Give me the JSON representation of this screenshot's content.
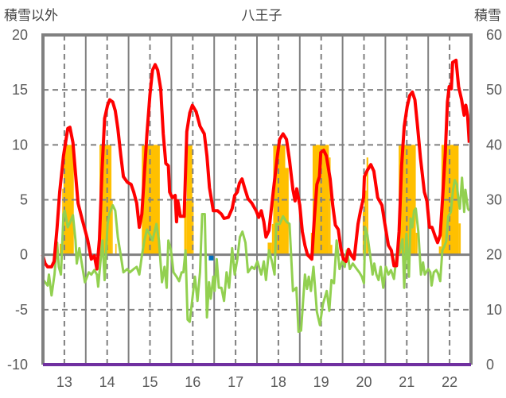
{
  "chart_data": {
    "type": "line",
    "title": "八王子",
    "ylabel_left": "積雪以外",
    "ylabel_right": "積雪",
    "xlim": [
      12.5,
      22.5
    ],
    "ylim_left": [
      -10,
      20
    ],
    "ylim_right": [
      0,
      60
    ],
    "x_ticks": [
      13,
      14,
      15,
      16,
      17,
      18,
      19,
      20,
      21,
      22
    ],
    "x_tick_labels": [
      "13",
      "14",
      "15",
      "16",
      "17",
      "18",
      "19",
      "20",
      "21",
      "22"
    ],
    "y_left_ticks": [
      20,
      15,
      10,
      5,
      0,
      -5,
      -10
    ],
    "y_left_tick_labels": [
      "20",
      "15",
      "10",
      "5",
      "0",
      "-5",
      "-10"
    ],
    "y_right_ticks": [
      60,
      50,
      40,
      30,
      20,
      10,
      0
    ],
    "y_right_tick_labels": [
      "60",
      "50",
      "40",
      "30",
      "20",
      "10",
      "0"
    ],
    "grid": true,
    "colors": {
      "red": "#FF0000",
      "green": "#92D050",
      "snow": "#FFC000",
      "purple": "#7030A0",
      "blue": "#0070C0",
      "grid": "#808080"
    },
    "series": [
      {
        "name": "red",
        "axis": "left",
        "x": [
          12.49,
          12.55,
          12.61,
          12.7,
          12.76,
          12.83,
          12.89,
          12.98,
          13.08,
          13.13,
          13.2,
          13.26,
          13.32,
          13.41,
          13.54,
          13.63,
          13.7,
          13.76,
          13.82,
          13.88,
          13.94,
          14.01,
          14.06,
          14.13,
          14.19,
          14.25,
          14.32,
          14.38,
          14.47,
          14.56,
          14.62,
          14.69,
          14.75,
          14.81,
          14.87,
          14.93,
          15.0,
          15.06,
          15.12,
          15.18,
          15.25,
          15.31,
          15.37,
          15.43,
          15.46,
          15.52,
          15.59,
          15.62,
          15.65,
          15.71,
          15.8,
          15.86,
          15.93,
          15.99,
          16.08,
          16.17,
          16.27,
          16.33,
          16.39,
          16.48,
          16.58,
          16.67,
          16.73,
          16.83,
          16.92,
          16.98,
          17.04,
          17.09,
          17.15,
          17.21,
          17.29,
          17.38,
          17.48,
          17.54,
          17.6,
          17.66,
          17.71,
          17.78,
          17.88,
          17.97,
          18.03,
          18.11,
          18.19,
          18.26,
          18.34,
          18.39,
          18.43,
          18.5,
          18.56,
          18.62,
          18.68,
          18.78,
          18.84,
          18.9,
          18.96,
          18.99,
          19.06,
          19.12,
          19.21,
          19.27,
          19.33,
          19.4,
          19.46,
          19.52,
          19.58,
          19.64,
          19.71,
          19.77,
          19.86,
          19.92,
          19.99,
          20.01,
          20.08,
          20.16,
          20.23,
          20.32,
          20.42,
          20.48,
          20.57,
          20.64,
          20.7,
          20.76,
          20.82,
          20.88,
          20.94,
          21.01,
          21.07,
          21.13,
          21.19,
          21.25,
          21.32,
          21.41,
          21.47,
          21.53,
          21.59,
          21.66,
          21.72,
          21.78,
          21.84,
          21.9,
          21.95,
          21.99,
          22.04,
          22.07,
          22.15,
          22.21,
          22.28,
          22.34,
          22.38,
          22.42,
          22.46
        ],
        "y": [
          0,
          -0.8,
          -1.1,
          -1.1,
          -0.6,
          2.5,
          5.7,
          9.0,
          11.5,
          11.6,
          10.2,
          7.4,
          4.7,
          3.3,
          1.4,
          -0.4,
          -0.1,
          -1.3,
          1.4,
          7.6,
          12.4,
          13.6,
          14.1,
          13.9,
          13.1,
          11.5,
          9.0,
          7.1,
          6.6,
          6.4,
          5.7,
          4.7,
          2.5,
          3.7,
          7.4,
          11.0,
          14.6,
          16.8,
          17.3,
          16.8,
          15.1,
          11.0,
          8.3,
          8.1,
          5.7,
          5.2,
          5.4,
          3.0,
          4.9,
          3.5,
          3.5,
          11.2,
          12.9,
          13.6,
          13.0,
          11.7,
          11.0,
          9.0,
          6.1,
          4.0,
          4.0,
          3.7,
          3.3,
          3.4,
          4.2,
          5.4,
          5.7,
          6.5,
          6.9,
          6.1,
          5.1,
          4.7,
          4.0,
          3.4,
          4.0,
          3.0,
          1.6,
          2.2,
          5.7,
          8.8,
          10.5,
          11.0,
          10.5,
          8.6,
          5.9,
          4.9,
          6.0,
          4.5,
          2.1,
          0.85,
          0,
          -0.4,
          3.3,
          6.4,
          7.1,
          9.3,
          9.5,
          9.0,
          6.9,
          4.5,
          2.7,
          2.3,
          0.6,
          -0.4,
          -0.6,
          0.5,
          -0.1,
          -0.4,
          2.8,
          4.0,
          5.2,
          7.1,
          7.7,
          8.2,
          7.6,
          5.2,
          4.5,
          3.0,
          0.85,
          0.4,
          -1.0,
          -1.0,
          2.1,
          8.1,
          11.7,
          13.5,
          14.5,
          14.8,
          14.1,
          11.7,
          8.8,
          5.7,
          4.9,
          2.5,
          2.5,
          1.7,
          1.1,
          1.8,
          5.4,
          9.3,
          13.9,
          15.3,
          15.1,
          17.5,
          17.7,
          15.3,
          14.1,
          12.7,
          13.6,
          12.7,
          10.2
        ]
      },
      {
        "name": "green",
        "axis": "left",
        "x": [
          12.49,
          12.55,
          12.61,
          12.64,
          12.7,
          12.77,
          12.83,
          12.87,
          12.92,
          12.98,
          13.01,
          13.08,
          13.14,
          13.2,
          13.26,
          13.29,
          13.35,
          13.42,
          13.48,
          13.57,
          13.63,
          13.7,
          13.76,
          13.79,
          13.85,
          13.89,
          13.94,
          14.01,
          14.05,
          14.13,
          14.19,
          14.25,
          14.32,
          14.38,
          14.47,
          14.53,
          14.62,
          14.69,
          14.75,
          14.81,
          14.87,
          14.93,
          15.0,
          15.06,
          15.15,
          15.21,
          15.28,
          15.34,
          15.39,
          15.43,
          15.49,
          15.55,
          15.62,
          15.68,
          15.74,
          15.78,
          15.83,
          15.88,
          15.93,
          15.99,
          16.05,
          16.11,
          16.17,
          16.22,
          16.28,
          16.33,
          16.38,
          16.42,
          16.48,
          16.51,
          16.56,
          16.61,
          16.67,
          16.73,
          16.79,
          16.85,
          16.92,
          16.98,
          17.04,
          17.1,
          17.16,
          17.23,
          17.29,
          17.38,
          17.44,
          17.51,
          17.6,
          17.66,
          17.71,
          17.78,
          17.85,
          17.91,
          17.95,
          18.03,
          18.11,
          18.19,
          18.26,
          18.34,
          18.42,
          18.47,
          18.53,
          18.56,
          18.62,
          18.67,
          18.71,
          18.76,
          18.82,
          18.9,
          18.97,
          19.04,
          19.13,
          19.19,
          19.24,
          19.3,
          19.36,
          19.43,
          19.49,
          19.55,
          19.6,
          19.67,
          19.74,
          19.83,
          19.89,
          19.95,
          20.0,
          20.03,
          20.08,
          20.14,
          20.2,
          20.24,
          20.29,
          20.34,
          20.39,
          20.45,
          20.51,
          20.57,
          20.63,
          20.7,
          20.76,
          20.82,
          20.9,
          20.94,
          20.99,
          21.05,
          21.09,
          21.13,
          21.17,
          21.21,
          21.27,
          21.33,
          21.38,
          21.42,
          21.5,
          21.55,
          21.58,
          21.63,
          21.69,
          21.73,
          21.78,
          21.83,
          21.87,
          21.92,
          21.97,
          22.03,
          22.08,
          22.12,
          22.17,
          22.21,
          22.24,
          22.29,
          22.34,
          22.37,
          22.43,
          22.46
        ],
        "y": [
          -2.2,
          -2.5,
          -2.8,
          -1.8,
          -3.7,
          -1.8,
          1.1,
          -1.1,
          -1.8,
          3.7,
          4.0,
          2.5,
          3.0,
          3.6,
          1.3,
          -0.8,
          0.6,
          -1.1,
          -2.5,
          -1.6,
          -1.8,
          -1.4,
          -1.8,
          -2.9,
          -0.4,
          1.3,
          -2.3,
          2.8,
          3.7,
          4.5,
          4.0,
          1.6,
          -0.1,
          -1.6,
          -1.3,
          -1.6,
          -1.3,
          -1.1,
          -1.8,
          -0.1,
          1.3,
          2.3,
          1.8,
          1.3,
          2.8,
          1.3,
          -2.5,
          -1.1,
          -3.0,
          1.3,
          0.4,
          -1.6,
          -2.0,
          -2.4,
          -1.6,
          -1.6,
          0.4,
          -5.9,
          -6.1,
          -4.0,
          -2.0,
          -4.2,
          -1.6,
          3.7,
          3.7,
          -5.7,
          -2.5,
          -4.0,
          -2.0,
          -3.3,
          -0.4,
          -3.0,
          -3.0,
          -4.2,
          -1.6,
          -3.0,
          0.6,
          -1.8,
          -0.4,
          1.6,
          2.1,
          1.1,
          -1.6,
          -1.1,
          -1.3,
          -0.6,
          -1.8,
          -0.6,
          -2.3,
          0.4,
          -0.6,
          -1.8,
          2.8,
          2.8,
          3.5,
          3.0,
          2.8,
          -3.3,
          -3.0,
          -7.0,
          -6.9,
          -5.2,
          -1.8,
          -3.1,
          -2.0,
          -3.3,
          -1.1,
          -5.2,
          -6.4,
          -4.5,
          -3.3,
          -5.1,
          -2.3,
          -2.6,
          1.3,
          -1.3,
          -0.6,
          -1.1,
          0.4,
          -1.3,
          -0.8,
          -1.3,
          -1.6,
          -2.0,
          -2.6,
          2.5,
          1.8,
          0.1,
          -1.8,
          -0.8,
          -1.8,
          -2.3,
          -1.1,
          -3.0,
          -1.1,
          -1.8,
          -1.4,
          -2.2,
          -0.1,
          0.1,
          1.4,
          -3.0,
          1.9,
          -2.0,
          3.3,
          2.5,
          4.0,
          4.2,
          2.1,
          -1.8,
          -0.7,
          -1.8,
          -1.3,
          -1.6,
          -2.8,
          -1.6,
          -1.4,
          -1.7,
          -2.4,
          0.4,
          0.7,
          1.2,
          3.5,
          3.9,
          5.9,
          6.8,
          6.4,
          4.9,
          4.2,
          7.0,
          3.9,
          5.9,
          4.2,
          4.0
        ]
      },
      {
        "name": "purple",
        "axis": "left",
        "x": [
          12.5,
          22.5
        ],
        "y": [
          -10,
          -10
        ]
      },
      {
        "name": "blue",
        "axis": "left",
        "x": [
          16.43
        ],
        "y": [
          -0.3
        ]
      }
    ],
    "snow_bars": {
      "name": "積雪",
      "axis": "right",
      "base": 20,
      "bars": [
        [
          12.89,
          12.95,
          22
        ],
        [
          12.95,
          12.98,
          32
        ],
        [
          12.98,
          13.22,
          40
        ],
        [
          13.78,
          13.82,
          22
        ],
        [
          13.82,
          14.1,
          40
        ],
        [
          14.1,
          14.13,
          30
        ],
        [
          14.19,
          14.22,
          22
        ],
        [
          14.81,
          15.23,
          40
        ],
        [
          15.8,
          15.86,
          29.7
        ],
        [
          15.86,
          15.99,
          40
        ],
        [
          15.99,
          16.02,
          29.7
        ],
        [
          17.75,
          17.85,
          22.2
        ],
        [
          17.85,
          17.88,
          25.6
        ],
        [
          17.88,
          18.16,
          40
        ],
        [
          18.16,
          18.24,
          35.8
        ],
        [
          18.76,
          18.8,
          24
        ],
        [
          18.8,
          19.18,
          40
        ],
        [
          19.18,
          19.22,
          37.7
        ],
        [
          19.22,
          19.26,
          21.8
        ],
        [
          19.97,
          20.01,
          27.8
        ],
        [
          20.01,
          20.06,
          31.7
        ],
        [
          20.06,
          20.1,
          37.7
        ],
        [
          20.81,
          21.21,
          40
        ],
        [
          21.21,
          21.25,
          24
        ],
        [
          21.75,
          21.81,
          21.5
        ],
        [
          21.81,
          22.21,
          40
        ],
        [
          22.21,
          22.26,
          25.7
        ]
      ]
    }
  }
}
